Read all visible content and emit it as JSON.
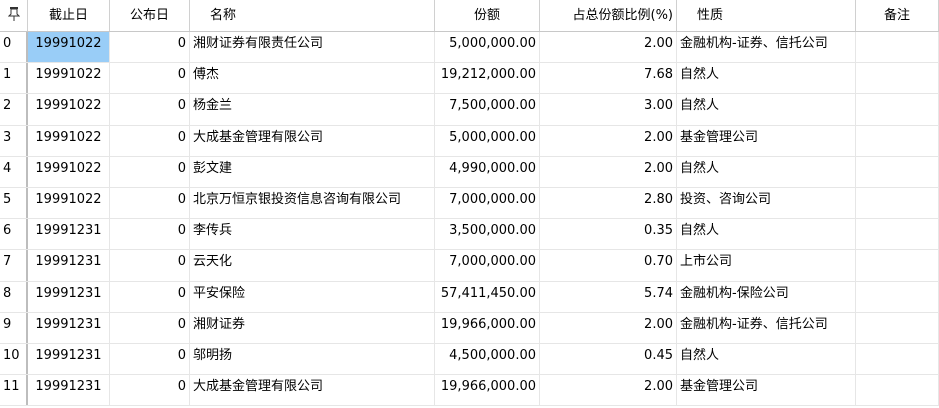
{
  "columns": [
    "截止日",
    "公布日",
    "名称",
    "份额",
    "占总份额比例(%)",
    "性质",
    "备注"
  ],
  "corner_icon": "pin-icon",
  "selection_color": "#99cdf7",
  "rows": [
    {
      "idx": "0",
      "date": "19991022",
      "pub": "0",
      "name": "湘财证券有限责任公司",
      "share": "5,000,000.00",
      "pct": "2.00",
      "type": "金融机构-证券、信托公司",
      "note": ""
    },
    {
      "idx": "1",
      "date": "19991022",
      "pub": "0",
      "name": "傅杰",
      "share": "19,212,000.00",
      "pct": "7.68",
      "type": "自然人",
      "note": ""
    },
    {
      "idx": "2",
      "date": "19991022",
      "pub": "0",
      "name": "杨金兰",
      "share": "7,500,000.00",
      "pct": "3.00",
      "type": "自然人",
      "note": ""
    },
    {
      "idx": "3",
      "date": "19991022",
      "pub": "0",
      "name": "大成基金管理有限公司",
      "share": "5,000,000.00",
      "pct": "2.00",
      "type": "基金管理公司",
      "note": ""
    },
    {
      "idx": "4",
      "date": "19991022",
      "pub": "0",
      "name": "彭文建",
      "share": "4,990,000.00",
      "pct": "2.00",
      "type": "自然人",
      "note": ""
    },
    {
      "idx": "5",
      "date": "19991022",
      "pub": "0",
      "name": "北京万恒京银投资信息咨询有限公司",
      "share": "7,000,000.00",
      "pct": "2.80",
      "type": "投资、咨询公司",
      "note": ""
    },
    {
      "idx": "6",
      "date": "19991231",
      "pub": "0",
      "name": "李传兵",
      "share": "3,500,000.00",
      "pct": "0.35",
      "type": "自然人",
      "note": ""
    },
    {
      "idx": "7",
      "date": "19991231",
      "pub": "0",
      "name": "云天化",
      "share": "7,000,000.00",
      "pct": "0.70",
      "type": "上市公司",
      "note": ""
    },
    {
      "idx": "8",
      "date": "19991231",
      "pub": "0",
      "name": "平安保险",
      "share": "57,411,450.00",
      "pct": "5.74",
      "type": "金融机构-保险公司",
      "note": ""
    },
    {
      "idx": "9",
      "date": "19991231",
      "pub": "0",
      "name": "湘财证券",
      "share": "19,966,000.00",
      "pct": "2.00",
      "type": "金融机构-证券、信托公司",
      "note": ""
    },
    {
      "idx": "10",
      "date": "19991231",
      "pub": "0",
      "name": "邬明扬",
      "share": "4,500,000.00",
      "pct": "0.45",
      "type": "自然人",
      "note": ""
    },
    {
      "idx": "11",
      "date": "19991231",
      "pub": "0",
      "name": "大成基金管理有限公司",
      "share": "19,966,000.00",
      "pct": "2.00",
      "type": "基金管理公司",
      "note": ""
    }
  ]
}
